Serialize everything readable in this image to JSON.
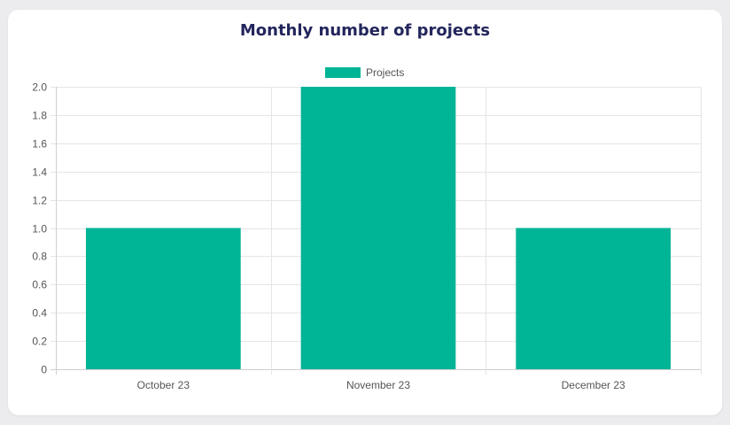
{
  "chart_data": {
    "type": "bar",
    "title": "Monthly number of projects",
    "categories": [
      "October 23",
      "November 23",
      "December 23"
    ],
    "series": [
      {
        "name": "Projects",
        "values": [
          1,
          2,
          1
        ],
        "color": "#00b496"
      }
    ],
    "y_ticks": [
      "0",
      "0.2",
      "0.4",
      "0.6",
      "0.8",
      "1.0",
      "1.2",
      "1.4",
      "1.6",
      "1.8",
      "2.0"
    ],
    "ylim": [
      0,
      2
    ],
    "grid": true,
    "legend_position": "top-center"
  },
  "colors": {
    "title": "#23265c",
    "bar": "#00b496",
    "grid": "#e5e5e5",
    "card": "#ffffff",
    "background": "#ececef"
  }
}
